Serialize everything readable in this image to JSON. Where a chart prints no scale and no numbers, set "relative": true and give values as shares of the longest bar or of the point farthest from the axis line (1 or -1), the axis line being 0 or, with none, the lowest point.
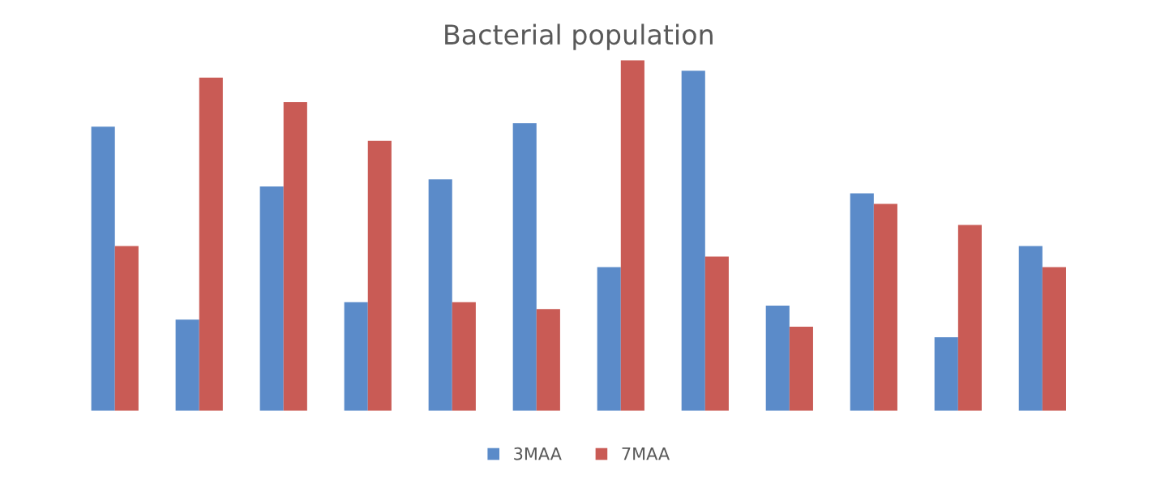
{
  "chart_data": {
    "type": "bar",
    "title": "Bacterial population",
    "relative": true,
    "categories": [
      null,
      null,
      null,
      null,
      null,
      null,
      null,
      null,
      null,
      null,
      null,
      null
    ],
    "series": [
      {
        "name": "3MAA",
        "color": "#5b8bc9",
        "values": [
          0.81,
          0.26,
          0.64,
          0.31,
          0.66,
          0.82,
          0.41,
          0.97,
          0.3,
          0.62,
          0.21,
          0.47
        ]
      },
      {
        "name": "7MAA",
        "color": "#c95b55",
        "values": [
          0.47,
          0.95,
          0.88,
          0.77,
          0.31,
          0.29,
          1.0,
          0.44,
          0.24,
          0.59,
          0.53,
          0.41
        ]
      }
    ],
    "legend": "bottom",
    "grid": false
  }
}
